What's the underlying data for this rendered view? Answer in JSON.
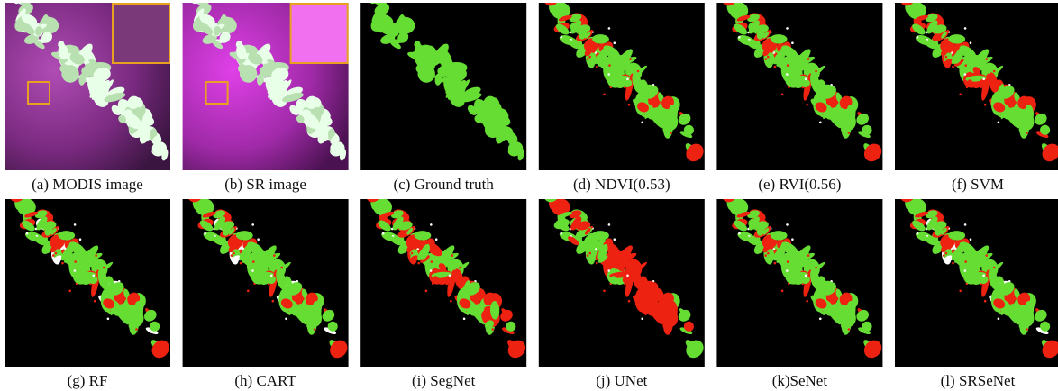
{
  "panels": [
    {
      "caption": "(a) MODIS image"
    },
    {
      "caption": "(b) SR image"
    },
    {
      "caption": "(c) Ground truth"
    },
    {
      "caption": "(d) NDVI(0.53)"
    },
    {
      "caption": "(e) RVI(0.56)"
    },
    {
      "caption": "(f) SVM"
    },
    {
      "caption": "(g) RF"
    },
    {
      "caption": "(h) CART"
    },
    {
      "caption": "(i) SegNet"
    },
    {
      "caption": "(j) UNet"
    },
    {
      "caption": "(k)SeNet"
    },
    {
      "caption": "(l) SRSeNet"
    }
  ]
}
